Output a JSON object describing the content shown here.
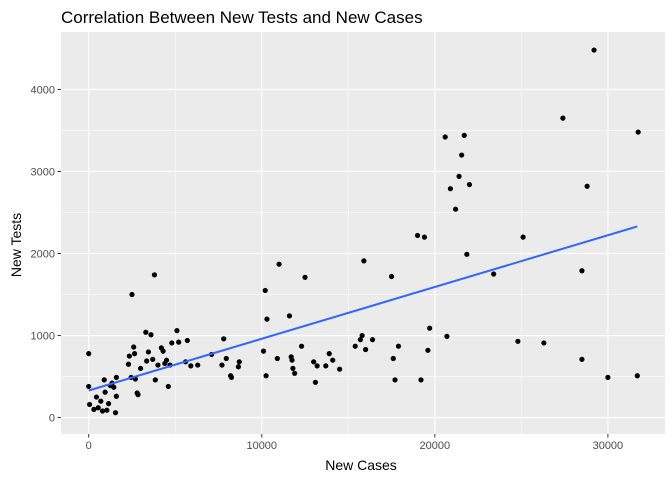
{
  "chart_data": {
    "type": "scatter",
    "title": "Correlation Between New Tests and New Cases",
    "xlabel": "New Cases",
    "ylabel": "New Tests",
    "xlim": [
      -1600,
      33300
    ],
    "ylim": [
      -200,
      4700
    ],
    "x_ticks": [
      0,
      10000,
      20000,
      30000
    ],
    "x_tick_labels": [
      "0",
      "10000",
      "20000",
      "30000"
    ],
    "y_ticks": [
      0,
      1000,
      2000,
      3000,
      4000
    ],
    "y_tick_labels": [
      "0",
      "1000",
      "2000",
      "3000",
      "4000"
    ],
    "grid": true,
    "legend": "none",
    "background_color": "#ebebeb",
    "point_color": "#000000",
    "trend_color": "#3366ff",
    "trend_line": {
      "type": "linear",
      "x": [
        0,
        31700
      ],
      "y": [
        330,
        2330
      ]
    },
    "points": [
      {
        "x": 0,
        "y": 780
      },
      {
        "x": 0,
        "y": 380
      },
      {
        "x": 50,
        "y": 160
      },
      {
        "x": 300,
        "y": 100
      },
      {
        "x": 450,
        "y": 250
      },
      {
        "x": 550,
        "y": 120
      },
      {
        "x": 700,
        "y": 200
      },
      {
        "x": 800,
        "y": 80
      },
      {
        "x": 900,
        "y": 460
      },
      {
        "x": 950,
        "y": 310
      },
      {
        "x": 1050,
        "y": 90
      },
      {
        "x": 1150,
        "y": 170
      },
      {
        "x": 1250,
        "y": 390
      },
      {
        "x": 1350,
        "y": 420
      },
      {
        "x": 1450,
        "y": 370
      },
      {
        "x": 1550,
        "y": 60
      },
      {
        "x": 1600,
        "y": 490
      },
      {
        "x": 1600,
        "y": 260
      },
      {
        "x": 2300,
        "y": 650
      },
      {
        "x": 2350,
        "y": 750
      },
      {
        "x": 2450,
        "y": 490
      },
      {
        "x": 2500,
        "y": 1500
      },
      {
        "x": 2600,
        "y": 860
      },
      {
        "x": 2650,
        "y": 780
      },
      {
        "x": 2700,
        "y": 470
      },
      {
        "x": 2800,
        "y": 300
      },
      {
        "x": 2850,
        "y": 280
      },
      {
        "x": 3000,
        "y": 600
      },
      {
        "x": 3300,
        "y": 1040
      },
      {
        "x": 3350,
        "y": 690
      },
      {
        "x": 3450,
        "y": 800
      },
      {
        "x": 3600,
        "y": 1010
      },
      {
        "x": 3700,
        "y": 710
      },
      {
        "x": 3800,
        "y": 1740
      },
      {
        "x": 3850,
        "y": 460
      },
      {
        "x": 4000,
        "y": 640
      },
      {
        "x": 4200,
        "y": 850
      },
      {
        "x": 4300,
        "y": 810
      },
      {
        "x": 4400,
        "y": 660
      },
      {
        "x": 4500,
        "y": 700
      },
      {
        "x": 4600,
        "y": 380
      },
      {
        "x": 4700,
        "y": 640
      },
      {
        "x": 4800,
        "y": 910
      },
      {
        "x": 5100,
        "y": 1060
      },
      {
        "x": 5200,
        "y": 920
      },
      {
        "x": 5600,
        "y": 680
      },
      {
        "x": 5700,
        "y": 940
      },
      {
        "x": 5900,
        "y": 630
      },
      {
        "x": 6300,
        "y": 640
      },
      {
        "x": 7100,
        "y": 770
      },
      {
        "x": 7700,
        "y": 640
      },
      {
        "x": 7800,
        "y": 960
      },
      {
        "x": 7950,
        "y": 720
      },
      {
        "x": 8200,
        "y": 510
      },
      {
        "x": 8250,
        "y": 490
      },
      {
        "x": 8650,
        "y": 620
      },
      {
        "x": 8700,
        "y": 680
      },
      {
        "x": 10100,
        "y": 810
      },
      {
        "x": 10200,
        "y": 1550
      },
      {
        "x": 10300,
        "y": 1200
      },
      {
        "x": 10250,
        "y": 510
      },
      {
        "x": 10900,
        "y": 720
      },
      {
        "x": 11000,
        "y": 1870
      },
      {
        "x": 11600,
        "y": 1240
      },
      {
        "x": 11700,
        "y": 740
      },
      {
        "x": 11750,
        "y": 700
      },
      {
        "x": 11800,
        "y": 600
      },
      {
        "x": 11900,
        "y": 540
      },
      {
        "x": 12300,
        "y": 870
      },
      {
        "x": 12500,
        "y": 1710
      },
      {
        "x": 13000,
        "y": 680
      },
      {
        "x": 13100,
        "y": 430
      },
      {
        "x": 13200,
        "y": 630
      },
      {
        "x": 13700,
        "y": 630
      },
      {
        "x": 13900,
        "y": 780
      },
      {
        "x": 14100,
        "y": 700
      },
      {
        "x": 14500,
        "y": 590
      },
      {
        "x": 15400,
        "y": 870
      },
      {
        "x": 15700,
        "y": 950
      },
      {
        "x": 15800,
        "y": 1000
      },
      {
        "x": 15900,
        "y": 1910
      },
      {
        "x": 16000,
        "y": 830
      },
      {
        "x": 16400,
        "y": 950
      },
      {
        "x": 17500,
        "y": 1720
      },
      {
        "x": 17600,
        "y": 720
      },
      {
        "x": 17700,
        "y": 460
      },
      {
        "x": 17900,
        "y": 870
      },
      {
        "x": 19000,
        "y": 2220
      },
      {
        "x": 19200,
        "y": 460
      },
      {
        "x": 19400,
        "y": 2200
      },
      {
        "x": 19600,
        "y": 820
      },
      {
        "x": 19700,
        "y": 1090
      },
      {
        "x": 20600,
        "y": 3420
      },
      {
        "x": 20700,
        "y": 990
      },
      {
        "x": 20900,
        "y": 2790
      },
      {
        "x": 21200,
        "y": 2540
      },
      {
        "x": 21400,
        "y": 2940
      },
      {
        "x": 21550,
        "y": 3200
      },
      {
        "x": 21700,
        "y": 3440
      },
      {
        "x": 21850,
        "y": 1990
      },
      {
        "x": 22000,
        "y": 2840
      },
      {
        "x": 23400,
        "y": 1750
      },
      {
        "x": 24800,
        "y": 930
      },
      {
        "x": 25100,
        "y": 2200
      },
      {
        "x": 26300,
        "y": 910
      },
      {
        "x": 27400,
        "y": 3650
      },
      {
        "x": 28500,
        "y": 1790
      },
      {
        "x": 28500,
        "y": 710
      },
      {
        "x": 28800,
        "y": 2820
      },
      {
        "x": 29200,
        "y": 4480
      },
      {
        "x": 30000,
        "y": 490
      },
      {
        "x": 31700,
        "y": 510
      },
      {
        "x": 31750,
        "y": 3480
      }
    ]
  }
}
